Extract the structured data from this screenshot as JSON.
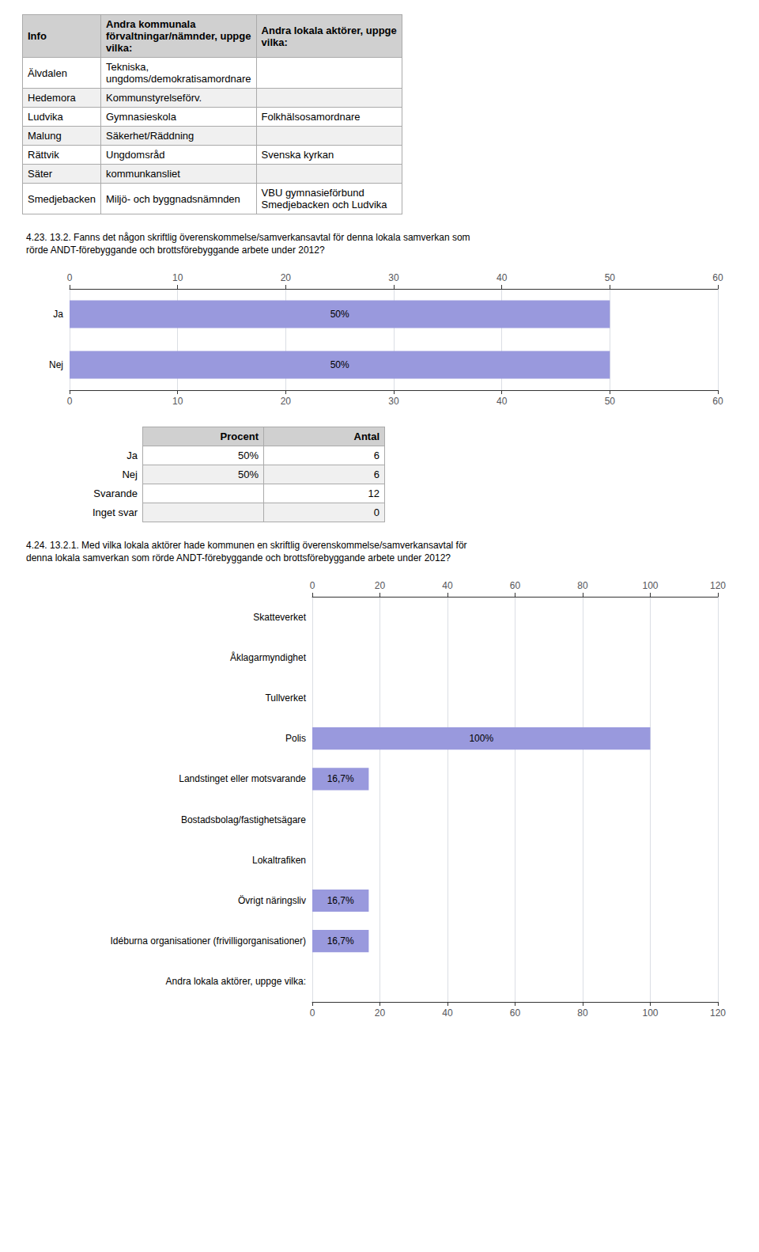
{
  "chart_data": [
    {
      "type": "table",
      "headers": [
        "Info",
        "Andra kommunala\nförvaltningar/nämnder, uppge\nvilka:",
        "Andra lokala aktörer, uppge\nvilka:"
      ],
      "rows": [
        [
          "Älvdalen",
          "Tekniska,\nungdoms/demokratisamordnare",
          null
        ],
        [
          "Hedemora",
          "Kommunstyrelseförv.",
          null
        ],
        [
          "Ludvika",
          "Gymnasieskola",
          "Folkhälsosamordnare"
        ],
        [
          "Malung",
          "Säkerhet/Räddning",
          null
        ],
        [
          "Rättvik",
          "Ungdomsråd",
          "Svenska kyrkan"
        ],
        [
          "Säter",
          "kommunkansliet",
          null
        ],
        [
          "Smedjebacken",
          "Miljö- och byggnadsnämnden",
          "VBU gymnasieförbund\nSmedjebacken och Ludvika"
        ]
      ]
    },
    {
      "type": "bar",
      "title": "4.23. 13.2. Fanns det någon skriftlig överenskommelse/samverkansavtal för denna lokala samverkan som\nrörde ANDT-förebyggande och brottsförebyggande arbete under 2012?",
      "orientation": "horizontal",
      "categories": [
        "Ja",
        "Nej"
      ],
      "values": [
        50,
        50
      ],
      "value_labels": [
        "50%",
        "50%"
      ],
      "color": "#9999dd",
      "xlim": [
        0,
        60
      ],
      "xticks": [
        0,
        10,
        20,
        30,
        40,
        50,
        60
      ],
      "grid": true,
      "data_labels": true
    },
    {
      "type": "table",
      "headers": [
        null,
        "Procent",
        "Antal"
      ],
      "rows": [
        [
          "Ja",
          "50%",
          "6"
        ],
        [
          "Nej",
          "50%",
          "6"
        ],
        [
          "Svarande",
          null,
          "12"
        ],
        [
          "Inget svar",
          null,
          "0"
        ]
      ]
    },
    {
      "type": "bar",
      "title": "4.24. 13.2.1. Med vilka lokala aktörer hade kommunen en skriftlig överenskommelse/samverkansavtal för\ndenna lokala samverkan som rörde ANDT-förebyggande och brottsförebyggande arbete under 2012?",
      "orientation": "horizontal",
      "categories": [
        "Skatteverket",
        "Åklagarmyndighet",
        "Tullverket",
        "Polis",
        "Landstinget eller motsvarande",
        "Bostadsbolag/fastighetsägare",
        "Lokaltrafiken",
        "Övrigt näringsliv",
        "Idéburna organisationer (frivilligorganisationer)",
        "Andra lokala aktörer, uppge vilka:"
      ],
      "values": [
        0,
        0,
        0,
        100,
        16.7,
        0,
        0,
        16.7,
        16.7,
        0
      ],
      "value_labels": [
        null,
        null,
        null,
        "100%",
        "16,7%",
        null,
        null,
        "16,7%",
        "16,7%",
        null
      ],
      "color": "#9999dd",
      "xlim": [
        0,
        120
      ],
      "xticks": [
        0,
        20,
        40,
        60,
        80,
        100,
        120
      ],
      "grid": true,
      "data_labels": true
    }
  ]
}
